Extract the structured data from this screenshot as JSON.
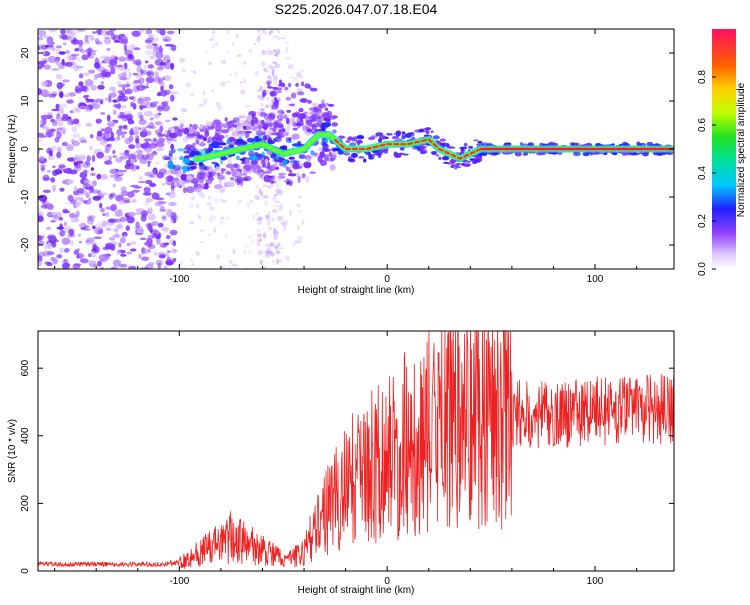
{
  "chart_data": [
    {
      "type": "heatmap",
      "title": "S225.2026.047.07.18.E04",
      "xlabel": "Height of straight line (km)",
      "ylabel": "Frequency (Hz)",
      "xlim": [
        -168,
        138
      ],
      "ylim": [
        -25,
        25
      ],
      "x_ticks": [
        -100,
        0,
        100
      ],
      "y_ticks": [
        -20,
        -10,
        0,
        10,
        20
      ],
      "x_tick_labels": [
        "-100",
        "0",
        "100"
      ],
      "y_tick_labels": [
        "-20",
        "-10",
        "0",
        "10",
        "20"
      ],
      "colorbar": {
        "label": "Normalized spectral amplitude",
        "range": [
          0,
          1
        ],
        "ticks": [
          0.0,
          0.2,
          0.4,
          0.6,
          0.8
        ],
        "tick_labels": [
          "0.0",
          "0.2",
          "0.4",
          "0.6",
          "0.8"
        ]
      },
      "ridge": {
        "x": [
          -90,
          -80,
          -70,
          -60,
          -50,
          -40,
          -33,
          -28,
          -20,
          -10,
          0,
          10,
          20,
          25,
          30,
          35,
          40,
          45,
          60,
          80,
          100,
          120,
          138
        ],
        "y": [
          -2,
          -1,
          0,
          1,
          -1,
          0,
          3,
          3,
          0,
          0,
          1,
          1,
          2,
          0,
          -1,
          -2,
          -1,
          0,
          0,
          0,
          0,
          0,
          0
        ]
      }
    },
    {
      "type": "line",
      "xlabel": "Height of straight line (km)",
      "ylabel": "SNR (10 * v/v)",
      "xlim": [
        -168,
        138
      ],
      "ylim": [
        0,
        710
      ],
      "x_ticks": [
        -100,
        0,
        100
      ],
      "y_ticks": [
        0,
        200,
        400,
        600
      ],
      "x_tick_labels": [
        "-100",
        "0",
        "100"
      ],
      "y_tick_labels": [
        "0",
        "200",
        "400",
        "600"
      ],
      "series": [
        {
          "name": "SNR",
          "color": "#ee2222",
          "envelope_x": [
            -168,
            -110,
            -100,
            -90,
            -80,
            -75,
            -70,
            -60,
            -50,
            -45,
            -40,
            -35,
            -30,
            -25,
            -20,
            -15,
            -10,
            -5,
            0,
            5,
            10,
            15,
            20,
            25,
            30,
            35,
            40,
            45,
            50,
            55,
            60,
            70,
            80,
            90,
            100,
            110,
            120,
            130,
            138
          ],
          "envelope_y": [
            20,
            20,
            25,
            55,
            80,
            100,
            90,
            60,
            35,
            40,
            60,
            120,
            170,
            210,
            250,
            280,
            300,
            330,
            330,
            350,
            380,
            400,
            410,
            420,
            450,
            460,
            470,
            480,
            470,
            460,
            470,
            460,
            460,
            470,
            480,
            470,
            480,
            480,
            470
          ]
        }
      ]
    }
  ]
}
